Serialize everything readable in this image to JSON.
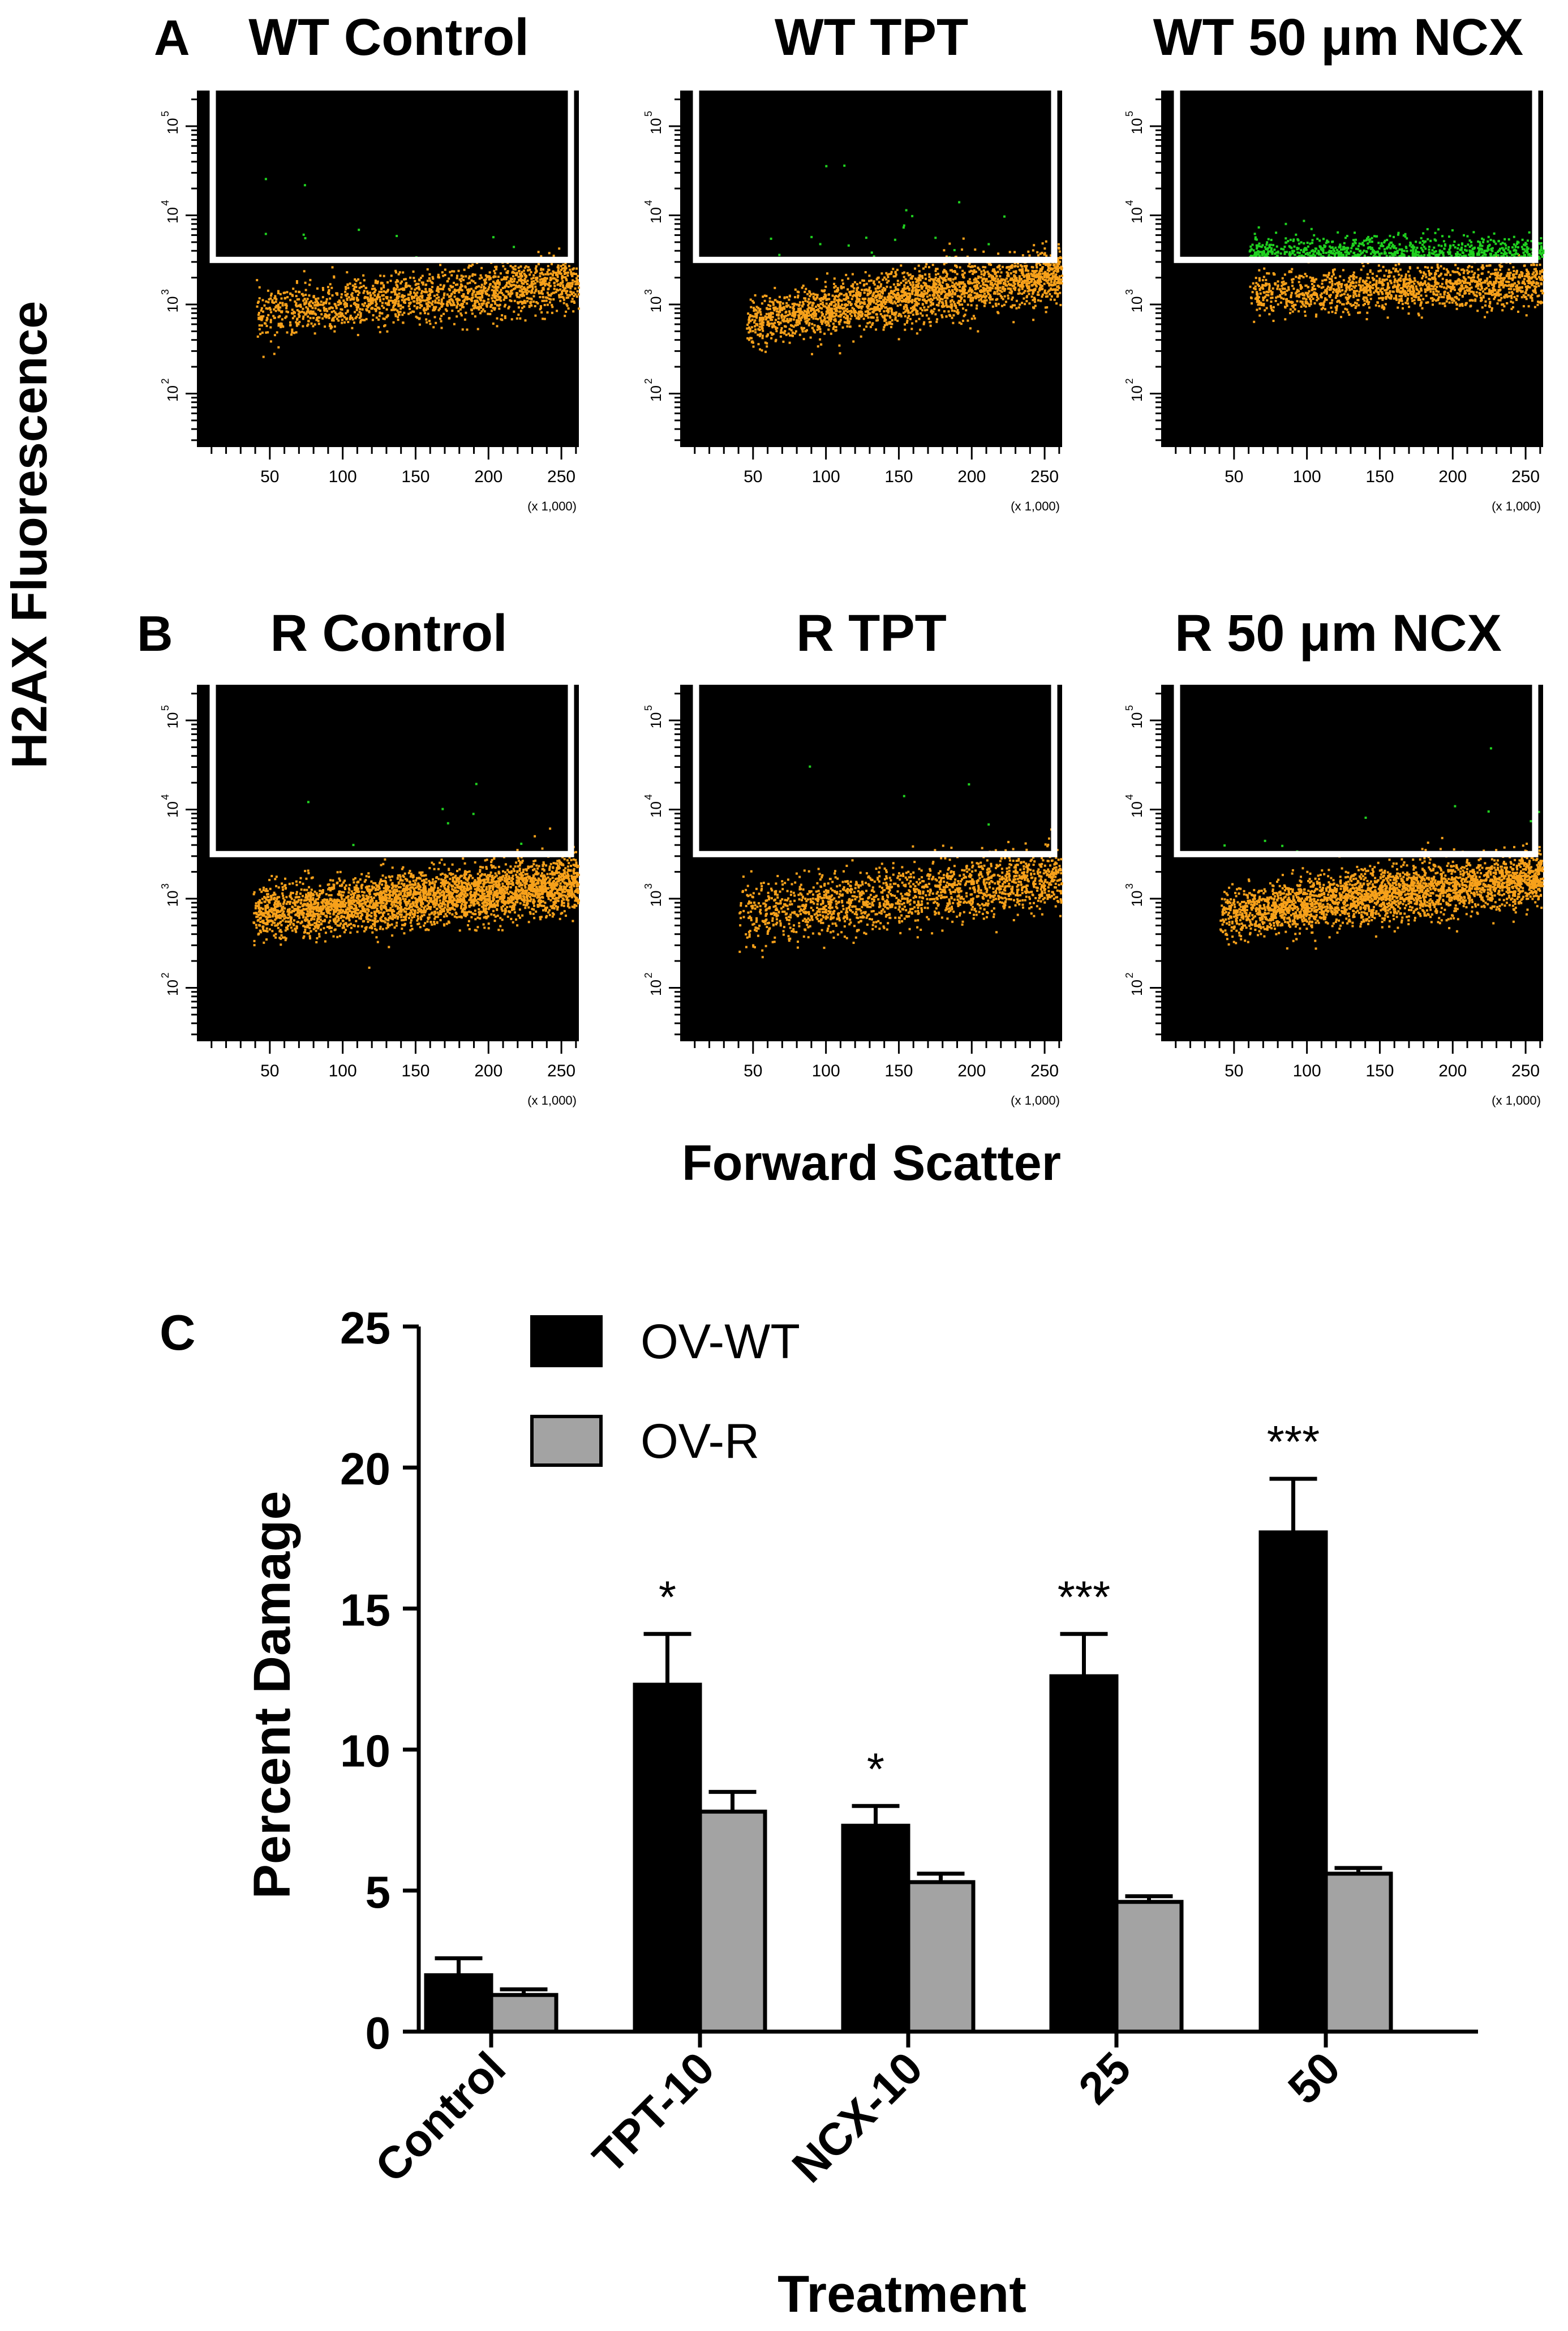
{
  "colors": {
    "background": "#000000",
    "gate": "#ffffff",
    "dot_main": "#f7a11a",
    "dot_gated": "#1fd11f",
    "bar_wt": "#000000",
    "bar_r": "#a3a3a3",
    "axis": "#000000"
  },
  "flow": {
    "ylabel": "H2AX Fluorescence",
    "xlabel": "Forward Scatter",
    "x_ticks": [
      "50",
      "100",
      "150",
      "200",
      "250"
    ],
    "x_tick_values": [
      50,
      100,
      150,
      200,
      250
    ],
    "x_range": [
      0,
      262
    ],
    "x_multiplier": "(x 1,000)",
    "y_ticks": [
      "10",
      "10",
      "10",
      "10"
    ],
    "y_exponents": [
      "2",
      "3",
      "4",
      "5"
    ],
    "y_decades": [
      2,
      3,
      4,
      5
    ],
    "y_range": [
      1.4,
      5.4
    ],
    "gate_threshold_log": 3.5,
    "rows": [
      {
        "letter": "A",
        "panels": [
          {
            "title": "WT Control",
            "x_start": 40,
            "x_end": 262,
            "y_center": 3.0,
            "y_spread": 0.14,
            "slope": 0.0016,
            "n_main": 1700,
            "n_gated": 12
          },
          {
            "title": "WT TPT",
            "x_start": 45,
            "x_end": 262,
            "y_center": 2.95,
            "y_spread": 0.15,
            "slope": 0.0025,
            "n_main": 2400,
            "n_gated": 22
          },
          {
            "title": "WT 50 μm NCX",
            "x_start": 60,
            "x_end": 262,
            "y_center": 3.15,
            "y_spread": 0.12,
            "slope": 0.0006,
            "n_main": 1500,
            "n_gated": 900
          }
        ]
      },
      {
        "letter": "B",
        "panels": [
          {
            "title": "R Control",
            "x_start": 38,
            "x_end": 262,
            "y_center": 2.93,
            "y_spread": 0.15,
            "slope": 0.0016,
            "n_main": 3400,
            "n_gated": 8
          },
          {
            "title": "R TPT",
            "x_start": 40,
            "x_end": 262,
            "y_center": 2.95,
            "y_spread": 0.17,
            "slope": 0.0018,
            "n_main": 1700,
            "n_gated": 4
          },
          {
            "title": "R 50 μm NCX",
            "x_start": 40,
            "x_end": 262,
            "y_center": 2.95,
            "y_spread": 0.15,
            "slope": 0.0019,
            "n_main": 3000,
            "n_gated": 10
          }
        ]
      }
    ]
  },
  "chart_data": {
    "type": "bar",
    "panel_letter": "C",
    "title": "",
    "xlabel": "Treatment",
    "ylabel": "Percent Damage",
    "ylim": [
      0,
      25
    ],
    "yticks": [
      "0",
      "5",
      "10",
      "15",
      "20",
      "25"
    ],
    "ytick_values": [
      0,
      5,
      10,
      15,
      20,
      25
    ],
    "categories": [
      "Control",
      "TPT-10",
      "NCX-10",
      "25",
      "50"
    ],
    "series": [
      {
        "name": "OV-WT",
        "values": [
          2.0,
          12.3,
          7.3,
          12.6,
          17.7
        ],
        "errors": [
          0.6,
          1.8,
          0.7,
          1.5,
          1.9
        ],
        "significance": [
          "",
          "*",
          "*",
          "***",
          "***"
        ]
      },
      {
        "name": "OV-R",
        "values": [
          1.3,
          7.8,
          5.3,
          4.6,
          5.6
        ],
        "errors": [
          0.2,
          0.7,
          0.3,
          0.2,
          0.2
        ],
        "significance": [
          "",
          "",
          "",
          "",
          ""
        ]
      }
    ],
    "legend_position": "top-left"
  }
}
